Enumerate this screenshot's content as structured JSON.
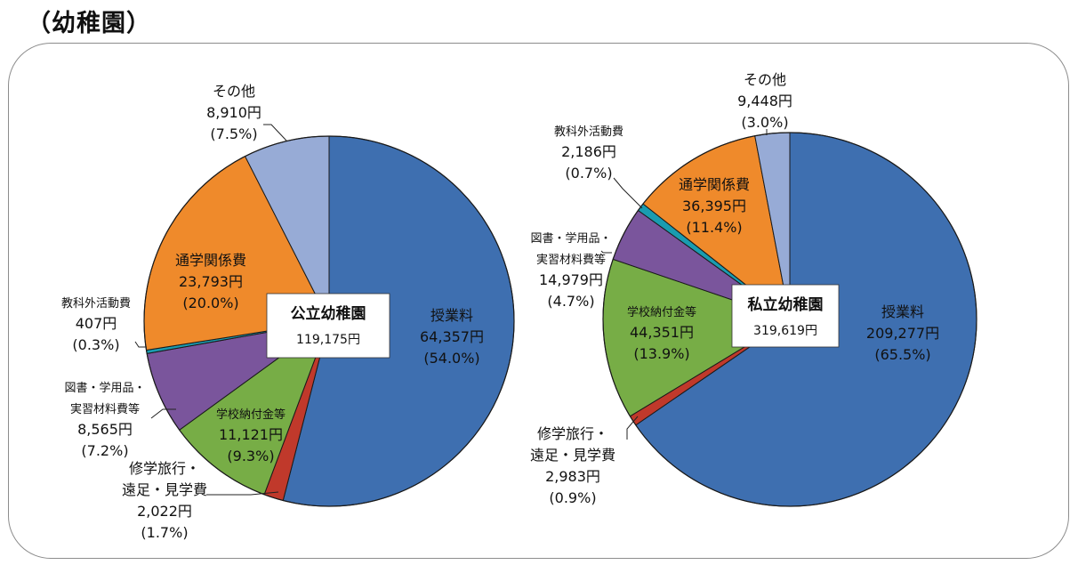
{
  "page": {
    "title": "（幼稚園）"
  },
  "chart_data": [
    {
      "type": "pie",
      "title": "公立幼稚園",
      "total": "119,175円",
      "slices": [
        {
          "label": "授業料",
          "amount": "64,357円",
          "pct": "(54.0%)",
          "value": 54.0,
          "color": "#3e6fb0"
        },
        {
          "label": "修学旅行・遠足・見学費",
          "label_lines": [
            "修学旅行・",
            "遠足・見学費"
          ],
          "amount": "2,022円",
          "pct": "(1.7%)",
          "value": 1.7,
          "color": "#c0392b"
        },
        {
          "label": "学校納付金等",
          "amount": "11,121円",
          "pct": "(9.3%)",
          "value": 9.3,
          "color": "#77ad46"
        },
        {
          "label": "図書・学用品・実習材料費等",
          "label_lines": [
            "図書・学用品・",
            "実習材料費等"
          ],
          "amount": "8,565円",
          "pct": "(7.2%)",
          "value": 7.2,
          "color": "#7a559c"
        },
        {
          "label": "教科外活動費",
          "amount": "407円",
          "pct": "(0.3%)",
          "value": 0.3,
          "color": "#1a9cb0"
        },
        {
          "label": "通学関係費",
          "amount": "23,793円",
          "pct": "(20.0%)",
          "value": 20.0,
          "color": "#ef8a2b"
        },
        {
          "label": "その他",
          "amount": "8,910円",
          "pct": "(7.5%)",
          "value": 7.5,
          "color": "#97abd6"
        }
      ]
    },
    {
      "type": "pie",
      "title": "私立幼稚園",
      "total": "319,619円",
      "slices": [
        {
          "label": "授業料",
          "amount": "209,277円",
          "pct": "(65.5%)",
          "value": 65.5,
          "color": "#3e6fb0"
        },
        {
          "label": "修学旅行・遠足・見学費",
          "label_lines": [
            "修学旅行・",
            "遠足・見学費"
          ],
          "amount": "2,983円",
          "pct": "(0.9%)",
          "value": 0.9,
          "color": "#c0392b"
        },
        {
          "label": "学校納付金等",
          "amount": "44,351円",
          "pct": "(13.9%)",
          "value": 13.9,
          "color": "#77ad46"
        },
        {
          "label": "図書・学用品・実習材料費等",
          "label_lines": [
            "図書・学用品・",
            "実習材料費等"
          ],
          "amount": "14,979円",
          "pct": "(4.7%)",
          "value": 4.7,
          "color": "#7a559c"
        },
        {
          "label": "教科外活動費",
          "amount": "2,186円",
          "pct": "(0.7%)",
          "value": 0.7,
          "color": "#1a9cb0"
        },
        {
          "label": "通学関係費",
          "amount": "36,395円",
          "pct": "(11.4%)",
          "value": 11.4,
          "color": "#ef8a2b"
        },
        {
          "label": "その他",
          "amount": "9,448円",
          "pct": "(3.0%)",
          "value": 3.0,
          "color": "#97abd6"
        }
      ]
    }
  ]
}
